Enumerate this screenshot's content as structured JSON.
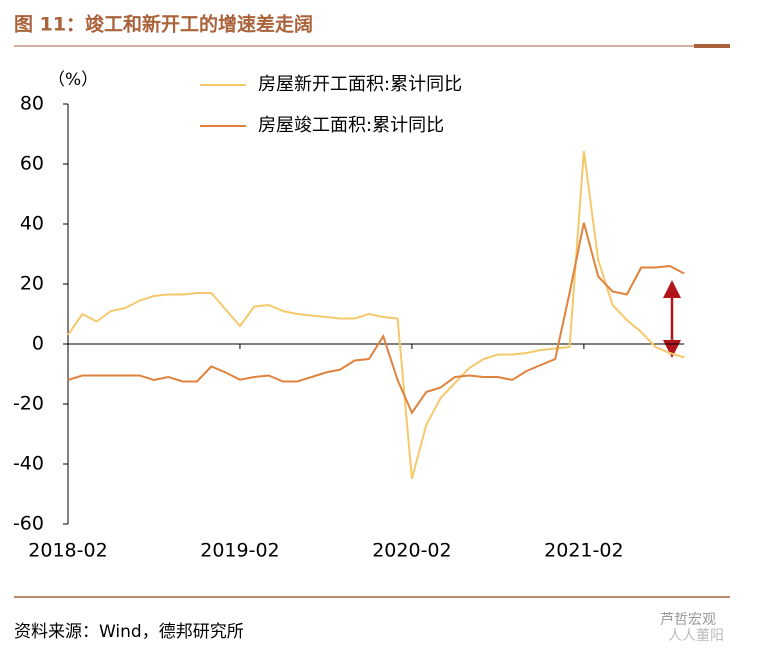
{
  "title": "图 11：竣工和新开工的增速差走阔",
  "source": "资料来源：Wind，德邦研究所",
  "watermark": [
    "芦哲宏观",
    "人人董阳"
  ],
  "chart_data": {
    "type": "line",
    "y_label": "（%）",
    "categories": [
      "2018-02",
      null,
      null,
      null,
      null,
      null,
      null,
      null,
      null,
      null,
      null,
      null,
      "2019-02",
      null,
      null,
      null,
      null,
      null,
      null,
      null,
      null,
      null,
      null,
      null,
      "2020-02",
      null,
      null,
      null,
      null,
      null,
      null,
      null,
      null,
      null,
      null,
      null,
      "2021-02",
      null,
      null,
      null,
      null,
      null,
      null,
      null
    ],
    "series": [
      {
        "name": "房屋新开工面积:累计同比",
        "color": "#f5c96b",
        "values": [
          3,
          10,
          7.5,
          11,
          12,
          14.5,
          16,
          16.5,
          16.5,
          17,
          17,
          11.5,
          6,
          12.5,
          13,
          11,
          10,
          9.5,
          9,
          8.5,
          8.5,
          10,
          9,
          8.5,
          -44.9,
          -27,
          -18,
          -13,
          -8,
          -5,
          -3.5,
          -3.5,
          -3,
          -2,
          -1.5,
          -1,
          64.3,
          28,
          13,
          8,
          4,
          -1,
          -3,
          -4.5
        ]
      },
      {
        "name": "房屋竣工面积:累计同比",
        "color": "#e0823d",
        "values": [
          -12,
          -10.5,
          -10.5,
          -10.5,
          -10.5,
          -10.5,
          -12,
          -11,
          -12.5,
          -12.5,
          -7.5,
          -9.5,
          -11.9,
          -11,
          -10.5,
          -12.5,
          -12.5,
          -11,
          -9.5,
          -8.5,
          -5.5,
          -5,
          2.6,
          -12,
          -22.9,
          -16,
          -14.5,
          -11,
          -10.5,
          -11,
          -11,
          -12,
          -9,
          -7,
          -5,
          17,
          40.4,
          22.5,
          17.5,
          16.5,
          25.5,
          25.5,
          26,
          23.5
        ]
      }
    ],
    "ylim": [
      -60,
      80
    ],
    "yticks": [
      -60,
      -40,
      -20,
      0,
      20,
      40,
      60,
      80
    ],
    "legend": "top"
  }
}
